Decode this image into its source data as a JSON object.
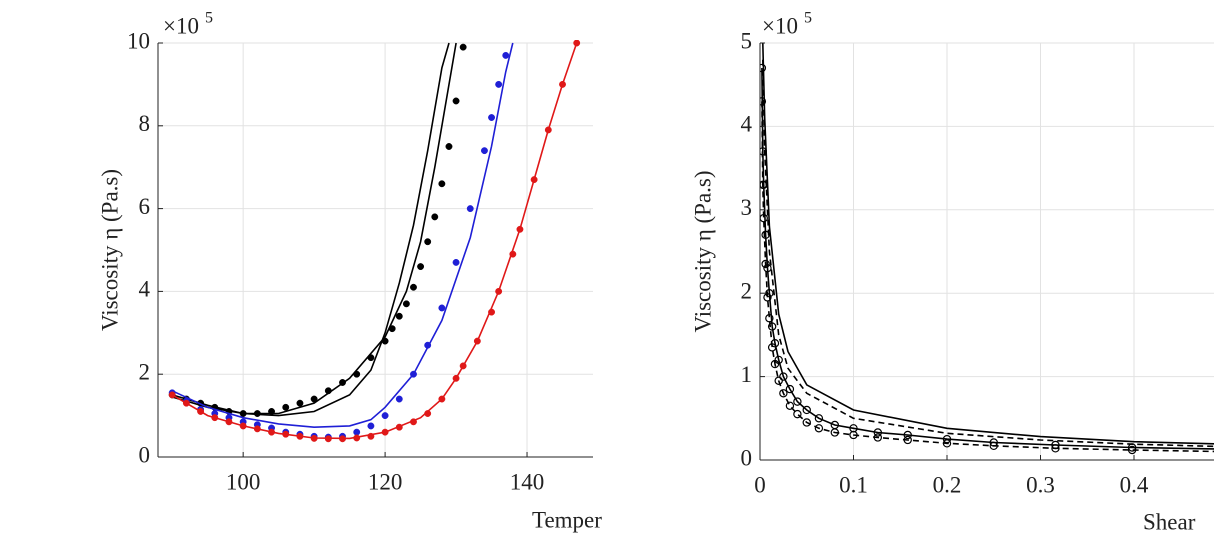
{
  "chart_data": [
    {
      "type": "line",
      "ylabel": "Viscosity η (Pa.s)",
      "xlabel": "Temper",
      "y_multiplier": "×10",
      "y_multiplier_exponent": "5",
      "xlim": [
        88,
        150
      ],
      "ylim": [
        0,
        10
      ],
      "xticks": [
        100,
        120,
        140
      ],
      "yticks": [
        0,
        2,
        4,
        6,
        8,
        10
      ],
      "grid": true,
      "series": [
        {
          "color": "#000000",
          "marker": "dot",
          "x": [
            90,
            92,
            94,
            96,
            98,
            100,
            102,
            104,
            106,
            108,
            110,
            112,
            114,
            116,
            118,
            120,
            121,
            122,
            123,
            124,
            125,
            126,
            127,
            128,
            129,
            130,
            131
          ],
          "values": [
            1.5,
            1.4,
            1.3,
            1.2,
            1.1,
            1.05,
            1.05,
            1.1,
            1.2,
            1.3,
            1.4,
            1.6,
            1.8,
            2.0,
            2.4,
            2.8,
            3.1,
            3.4,
            3.7,
            4.1,
            4.6,
            5.2,
            5.8,
            6.6,
            7.5,
            8.6,
            9.9
          ]
        },
        {
          "color": "#000000",
          "marker": "none",
          "x": [
            90,
            95,
            100,
            105,
            110,
            115,
            120,
            123,
            125,
            127,
            129,
            130
          ],
          "values": [
            1.5,
            1.25,
            1.05,
            1.05,
            1.3,
            1.9,
            2.9,
            4.0,
            5.2,
            7.0,
            9.0,
            10
          ]
        },
        {
          "color": "#000000",
          "marker": "none",
          "x": [
            90,
            95,
            100,
            105,
            110,
            115,
            118,
            120,
            122,
            124,
            126,
            128,
            129
          ],
          "values": [
            1.45,
            1.2,
            1.05,
            1.0,
            1.1,
            1.5,
            2.1,
            3.0,
            4.2,
            5.6,
            7.4,
            9.4,
            10
          ]
        },
        {
          "color": "#1f1fd6",
          "marker": "dot",
          "x": [
            90,
            92,
            94,
            96,
            98,
            100,
            102,
            104,
            106,
            108,
            110,
            112,
            114,
            116,
            118,
            120,
            122,
            124,
            126,
            128,
            130,
            132,
            134,
            135,
            136,
            137
          ],
          "values": [
            1.55,
            1.35,
            1.15,
            1.05,
            0.95,
            0.85,
            0.78,
            0.7,
            0.6,
            0.55,
            0.5,
            0.48,
            0.5,
            0.6,
            0.75,
            1.0,
            1.4,
            2.0,
            2.7,
            3.6,
            4.7,
            6.0,
            7.4,
            8.2,
            9.0,
            9.7
          ]
        },
        {
          "color": "#1f1fd6",
          "marker": "none",
          "x": [
            90,
            95,
            100,
            105,
            110,
            115,
            118,
            120,
            124,
            128,
            132,
            135,
            137,
            138
          ],
          "values": [
            1.6,
            1.2,
            0.95,
            0.8,
            0.72,
            0.75,
            0.9,
            1.2,
            2.0,
            3.3,
            5.3,
            7.5,
            9.3,
            10
          ]
        },
        {
          "color": "#e01818",
          "marker": "dot",
          "x": [
            90,
            92,
            94,
            96,
            98,
            100,
            102,
            104,
            106,
            108,
            110,
            112,
            114,
            116,
            118,
            120,
            122,
            124,
            126,
            128,
            130,
            131,
            133,
            135,
            136,
            138,
            139,
            141,
            143,
            145,
            147
          ],
          "values": [
            1.5,
            1.3,
            1.1,
            0.95,
            0.85,
            0.75,
            0.68,
            0.6,
            0.55,
            0.5,
            0.45,
            0.44,
            0.44,
            0.46,
            0.5,
            0.6,
            0.72,
            0.85,
            1.05,
            1.4,
            1.9,
            2.2,
            2.8,
            3.5,
            4.0,
            4.9,
            5.5,
            6.7,
            7.9,
            9.0,
            10
          ]
        },
        {
          "color": "#e01818",
          "marker": "none",
          "x": [
            90,
            95,
            100,
            105,
            110,
            115,
            120,
            125,
            128,
            130,
            133,
            136,
            139,
            141,
            143,
            145,
            147
          ],
          "values": [
            1.5,
            1.0,
            0.75,
            0.57,
            0.46,
            0.45,
            0.6,
            0.95,
            1.4,
            1.9,
            2.8,
            4.0,
            5.5,
            6.7,
            7.9,
            9.0,
            10
          ]
        }
      ]
    },
    {
      "type": "line",
      "ylabel": "Viscosity η (Pa.s)",
      "xlabel": "Shear",
      "y_multiplier": "×10",
      "y_multiplier_exponent": "5",
      "xlim": [
        0,
        0.5
      ],
      "ylim": [
        0,
        5
      ],
      "xticks": [
        0,
        0.1,
        0.2,
        0.3,
        0.4
      ],
      "yticks": [
        0,
        1,
        2,
        3,
        4,
        5
      ],
      "grid": true,
      "series": [
        {
          "color": "#000000",
          "marker": "none",
          "dash": "solid",
          "x": [
            0.003,
            0.005,
            0.01,
            0.02,
            0.03,
            0.05,
            0.1,
            0.2,
            0.3,
            0.4,
            0.5
          ],
          "values": [
            5,
            4.1,
            2.8,
            1.75,
            1.3,
            0.9,
            0.6,
            0.38,
            0.28,
            0.22,
            0.19
          ]
        },
        {
          "color": "#000000",
          "marker": "none",
          "dash": "dashed",
          "x": [
            0.003,
            0.005,
            0.01,
            0.02,
            0.03,
            0.05,
            0.1,
            0.2,
            0.3,
            0.4,
            0.5
          ],
          "values": [
            4.8,
            3.7,
            2.5,
            1.5,
            1.1,
            0.8,
            0.5,
            0.32,
            0.24,
            0.19,
            0.16
          ]
        },
        {
          "color": "#000000",
          "marker": "circle",
          "dash": "solid",
          "x": [
            0.002,
            0.003,
            0.004,
            0.006,
            0.008,
            0.01,
            0.013,
            0.016,
            0.02,
            0.025,
            0.032,
            0.04,
            0.05,
            0.063,
            0.08,
            0.1,
            0.126,
            0.158,
            0.2,
            0.25,
            0.316,
            0.398,
            0.5
          ],
          "values": [
            4.7,
            3.7,
            3.3,
            2.7,
            2.3,
            2.0,
            1.6,
            1.4,
            1.2,
            1.0,
            0.85,
            0.7,
            0.6,
            0.5,
            0.42,
            0.38,
            0.33,
            0.3,
            0.25,
            0.21,
            0.18,
            0.15,
            0.13
          ]
        },
        {
          "color": "#000000",
          "marker": "circle",
          "dash": "dashed",
          "x": [
            0.002,
            0.003,
            0.004,
            0.006,
            0.008,
            0.01,
            0.013,
            0.016,
            0.02,
            0.025,
            0.032,
            0.04,
            0.05,
            0.063,
            0.08,
            0.1,
            0.126,
            0.158,
            0.2,
            0.25,
            0.316,
            0.398,
            0.5
          ],
          "values": [
            4.3,
            3.3,
            2.9,
            2.35,
            1.95,
            1.7,
            1.35,
            1.15,
            0.95,
            0.8,
            0.65,
            0.55,
            0.45,
            0.38,
            0.33,
            0.3,
            0.27,
            0.24,
            0.2,
            0.17,
            0.14,
            0.12,
            0.1
          ]
        }
      ]
    }
  ]
}
